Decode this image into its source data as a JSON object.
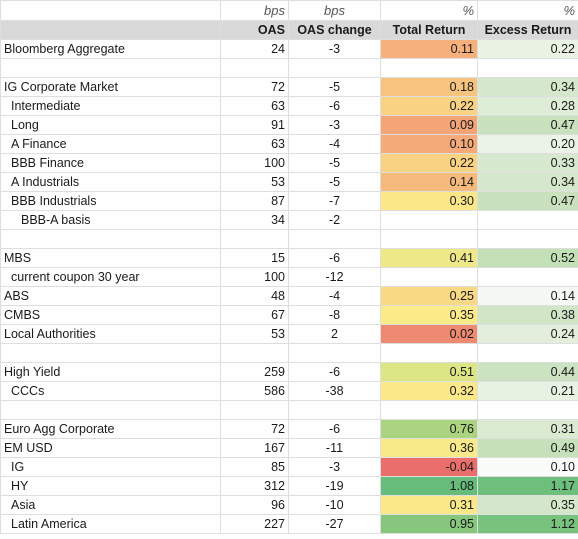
{
  "units": {
    "name": "",
    "oas": "bps",
    "oas_change": "bps",
    "total_return": "%",
    "excess_return": "%"
  },
  "headers": {
    "name": "",
    "oas": "OAS",
    "oas_change": "OAS change",
    "total_return": "Total Return",
    "excess_return": "Excess Return"
  },
  "rows": [
    {
      "name": "Bloomberg Aggregate",
      "indent": 0,
      "oas": "24",
      "chg": "-3",
      "tr": "0.11",
      "er": "0.22",
      "tr_color": "#f5b07c",
      "er_color": "#e9f2e3"
    },
    {
      "blank": true
    },
    {
      "name": "IG Corporate Market",
      "indent": 0,
      "oas": "72",
      "chg": "-5",
      "tr": "0.18",
      "er": "0.34",
      "tr_color": "#f7c47f",
      "er_color": "#d6e8cc"
    },
    {
      "name": "Intermediate",
      "indent": 1,
      "oas": "63",
      "chg": "-6",
      "tr": "0.22",
      "er": "0.28",
      "tr_color": "#f9d283",
      "er_color": "#deedd6"
    },
    {
      "name": "Long",
      "indent": 1,
      "oas": "91",
      "chg": "-3",
      "tr": "0.09",
      "er": "0.47",
      "tr_color": "#f3a578",
      "er_color": "#c9e2bd"
    },
    {
      "name": "A Finance",
      "indent": 1,
      "oas": "63",
      "chg": "-4",
      "tr": "0.10",
      "er": "0.20",
      "tr_color": "#f4aa79",
      "er_color": "#eaf3e5"
    },
    {
      "name": "BBB Finance",
      "indent": 1,
      "oas": "100",
      "chg": "-5",
      "tr": "0.22",
      "er": "0.33",
      "tr_color": "#f9d283",
      "er_color": "#d7e9ce"
    },
    {
      "name": "A Industrials",
      "indent": 1,
      "oas": "53",
      "chg": "-5",
      "tr": "0.14",
      "er": "0.34",
      "tr_color": "#f6ba7d",
      "er_color": "#d6e8cc"
    },
    {
      "name": "BBB Industrials",
      "indent": 1,
      "oas": "87",
      "chg": "-7",
      "tr": "0.30",
      "er": "0.47",
      "tr_color": "#fbe688",
      "er_color": "#c9e2bd"
    },
    {
      "name": "BBB-A basis",
      "indent": 2,
      "oas": "34",
      "chg": "-2",
      "tr": "",
      "er": "",
      "tr_color": "",
      "er_color": ""
    },
    {
      "blank": true
    },
    {
      "name": "MBS",
      "indent": 0,
      "oas": "15",
      "chg": "-6",
      "tr": "0.41",
      "er": "0.52",
      "tr_color": "#eee889",
      "er_color": "#c2dfb6"
    },
    {
      "name": "current coupon 30 year",
      "indent": 1,
      "oas": "100",
      "chg": "-12",
      "tr": "",
      "er": "",
      "tr_color": "",
      "er_color": ""
    },
    {
      "name": "ABS",
      "indent": 0,
      "oas": "48",
      "chg": "-4",
      "tr": "0.25",
      "er": "0.14",
      "tr_color": "#fad985",
      "er_color": "#f5f9f3"
    },
    {
      "name": "CMBS",
      "indent": 0,
      "oas": "67",
      "chg": "-8",
      "tr": "0.35",
      "er": "0.38",
      "tr_color": "#fceb89",
      "er_color": "#d1e6c7"
    },
    {
      "name": "Local Authorities",
      "indent": 0,
      "oas": "53",
      "chg": "2",
      "tr": "0.02",
      "er": "0.24",
      "tr_color": "#ef8a72",
      "er_color": "#e3efdc"
    },
    {
      "blank": true
    },
    {
      "name": "High Yield",
      "indent": 0,
      "oas": "259",
      "chg": "-6",
      "tr": "0.51",
      "er": "0.44",
      "tr_color": "#dde685",
      "er_color": "#cce3c1"
    },
    {
      "name": "CCCs",
      "indent": 1,
      "oas": "586",
      "chg": "-38",
      "tr": "0.32",
      "er": "0.21",
      "tr_color": "#fbe888",
      "er_color": "#e8f2e2"
    },
    {
      "blank": true
    },
    {
      "name": "Euro Agg Corporate",
      "indent": 0,
      "oas": "72",
      "chg": "-6",
      "tr": "0.76",
      "er": "0.31",
      "tr_color": "#aad480",
      "er_color": "#dbebd2"
    },
    {
      "name": "EM USD",
      "indent": 0,
      "oas": "167",
      "chg": "-11",
      "tr": "0.36",
      "er": "0.49",
      "tr_color": "#f9ea89",
      "er_color": "#c6e0b9"
    },
    {
      "name": "IG",
      "indent": 1,
      "oas": "85",
      "chg": "-3",
      "tr": "-0.04",
      "er": "0.10",
      "tr_color": "#ea6f6c",
      "er_color": "#fafcf9"
    },
    {
      "name": "HY",
      "indent": 1,
      "oas": "312",
      "chg": "-19",
      "tr": "1.08",
      "er": "1.17",
      "tr_color": "#68bc7b",
      "er_color": "#6fbf7c"
    },
    {
      "name": "Asia",
      "indent": 1,
      "oas": "96",
      "chg": "-10",
      "tr": "0.31",
      "er": "0.35",
      "tr_color": "#fbe888",
      "er_color": "#d4e7ca"
    },
    {
      "name": "Latin America",
      "indent": 1,
      "oas": "227",
      "chg": "-27",
      "tr": "0.95",
      "er": "1.12",
      "tr_color": "#86c77d",
      "er_color": "#77c27d"
    }
  ]
}
